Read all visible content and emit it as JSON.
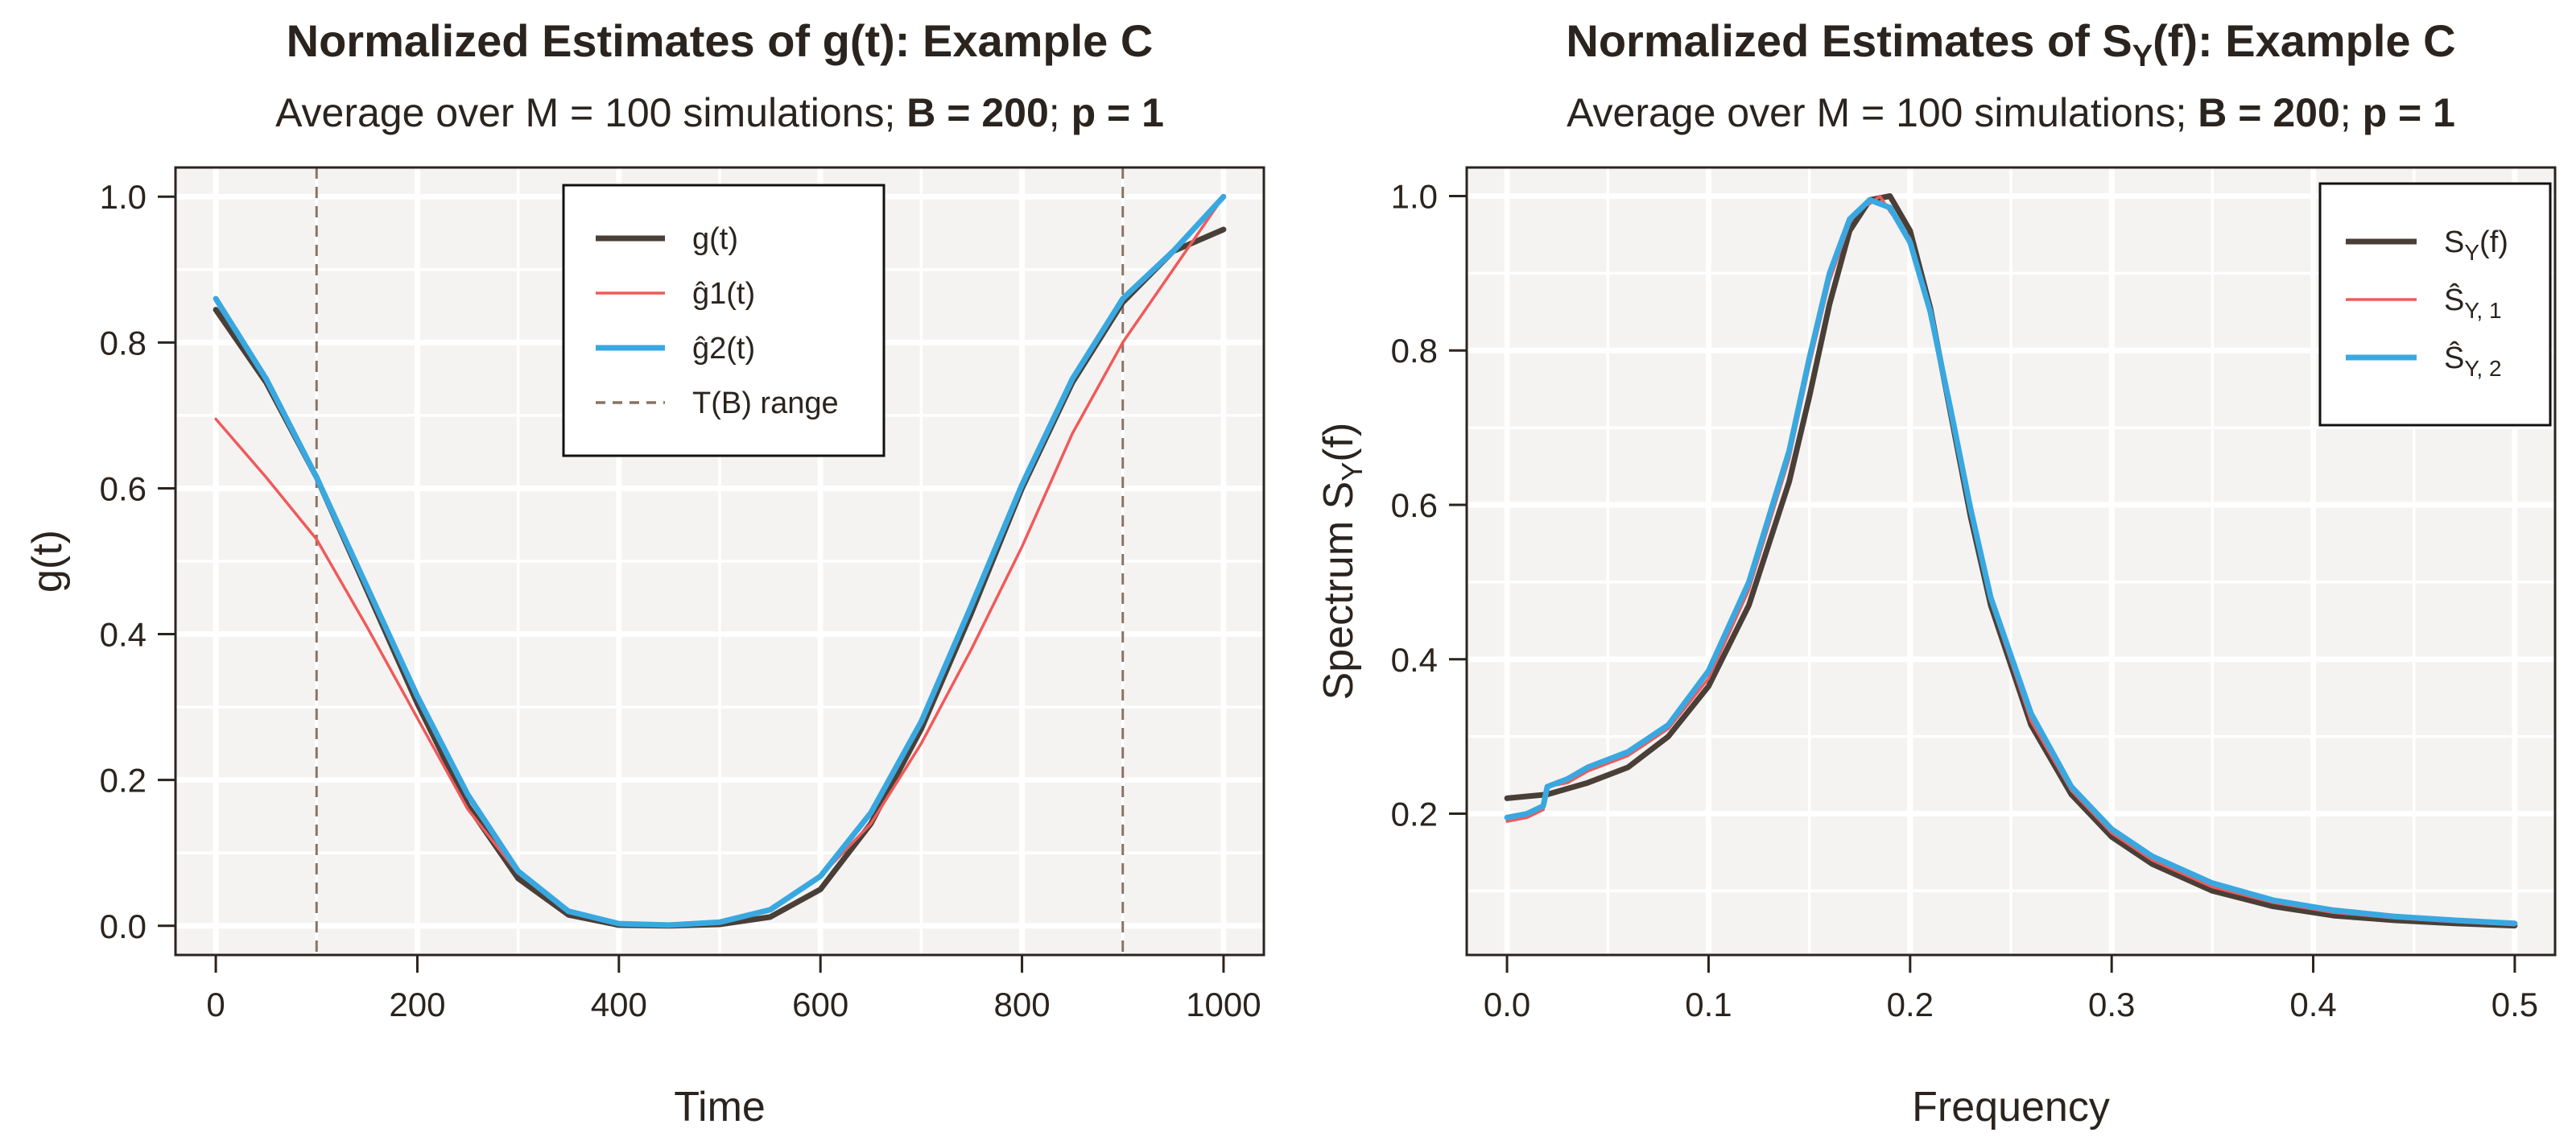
{
  "chart_data": [
    {
      "type": "line",
      "title": "Normalized Estimates of g(t): Example C",
      "subtitle": {
        "prefix": "Average over M = 100 simulations; ",
        "b_part": "B = 200",
        "sep": "; ",
        "p_part": "p = 1"
      },
      "xlabel": "Time",
      "ylabel": "g(t)",
      "xlim": [
        -40,
        1040
      ],
      "ylim": [
        -0.04,
        1.04
      ],
      "xticks": [
        0,
        200,
        400,
        600,
        800,
        1000
      ],
      "xtick_labels": [
        "0",
        "200",
        "400",
        "600",
        "800",
        "1000"
      ],
      "yticks": [
        0.0,
        0.2,
        0.4,
        0.6,
        0.8,
        1.0
      ],
      "ytick_labels": [
        "0.0",
        "0.2",
        "0.4",
        "0.6",
        "0.8",
        "1.0"
      ],
      "grid": true,
      "legend_position": "top-center",
      "vlines": [
        100,
        900
      ],
      "series": [
        {
          "name": "g(t)",
          "color": "#4a3f37",
          "style": "solid-thick",
          "x": [
            0,
            50,
            100,
            150,
            200,
            250,
            300,
            350,
            400,
            450,
            500,
            550,
            600,
            650,
            700,
            750,
            800,
            850,
            900,
            950,
            1000
          ],
          "y": [
            0.845,
            0.745,
            0.615,
            0.46,
            0.305,
            0.165,
            0.065,
            0.015,
            0.001,
            0.0,
            0.002,
            0.012,
            0.05,
            0.14,
            0.27,
            0.43,
            0.6,
            0.745,
            0.855,
            0.925,
            0.955
          ]
        },
        {
          "name": "ĝ1(t)",
          "color": "#f05a5a",
          "style": "solid-thin",
          "x": [
            0,
            50,
            100,
            150,
            200,
            250,
            300,
            350,
            400,
            450,
            500,
            550,
            600,
            650,
            700,
            750,
            800,
            850,
            900,
            950,
            1000
          ],
          "y": [
            0.695,
            0.615,
            0.53,
            0.41,
            0.285,
            0.16,
            0.072,
            0.02,
            0.003,
            0.0,
            0.003,
            0.022,
            0.068,
            0.14,
            0.25,
            0.38,
            0.52,
            0.675,
            0.8,
            0.9,
            1.0
          ]
        },
        {
          "name": "ĝ2(t)",
          "color": "#3aa8e0",
          "style": "solid-thick",
          "x": [
            0,
            50,
            100,
            150,
            200,
            250,
            300,
            350,
            400,
            450,
            500,
            550,
            600,
            650,
            700,
            750,
            800,
            850,
            900,
            950,
            1000
          ],
          "y": [
            0.86,
            0.75,
            0.615,
            0.465,
            0.315,
            0.18,
            0.075,
            0.02,
            0.003,
            0.001,
            0.005,
            0.022,
            0.068,
            0.155,
            0.28,
            0.44,
            0.605,
            0.75,
            0.86,
            0.925,
            1.0
          ]
        }
      ],
      "legend": [
        {
          "label": "g(t)",
          "kind": "line",
          "color": "#4a3f37",
          "width": "thick"
        },
        {
          "label": "ĝ1(t)",
          "kind": "line",
          "color": "#f05a5a",
          "width": "thin"
        },
        {
          "label": "ĝ2(t)",
          "kind": "line",
          "color": "#3aa8e0",
          "width": "thick"
        },
        {
          "label": "T(B) range",
          "kind": "dashed",
          "color": "#8a7364",
          "width": "thin"
        }
      ]
    },
    {
      "type": "line",
      "title": "Normalized Estimates of SY(f): Example C",
      "title_parts": {
        "before": "Normalized Estimates of S",
        "sub": "Y",
        "after": "(f): Example C"
      },
      "subtitle": {
        "prefix": "Average over M = 100 simulations; ",
        "b_part": "B = 200",
        "sep": "; ",
        "p_part": "p = 1"
      },
      "xlabel": "Frequency",
      "ylabel": "Spectrum SY(f)",
      "ylabel_parts": {
        "before": "Spectrum S",
        "sub": "Y",
        "after": "(f)"
      },
      "xlim": [
        -0.02,
        0.52
      ],
      "ylim": [
        0.017,
        1.037
      ],
      "xticks": [
        0.0,
        0.1,
        0.2,
        0.3,
        0.4,
        0.5
      ],
      "xtick_labels": [
        "0.0",
        "0.1",
        "0.2",
        "0.3",
        "0.4",
        "0.5"
      ],
      "yticks": [
        0.2,
        0.4,
        0.6,
        0.8,
        1.0
      ],
      "ytick_labels": [
        "0.2",
        "0.4",
        "0.6",
        "0.8",
        "1.0"
      ],
      "grid": true,
      "legend_position": "top-right",
      "series": [
        {
          "name": "SY(f)",
          "color": "#4a3f37",
          "style": "solid-thick",
          "x": [
            0.0,
            0.02,
            0.04,
            0.06,
            0.08,
            0.1,
            0.12,
            0.14,
            0.15,
            0.16,
            0.17,
            0.18,
            0.19,
            0.2,
            0.21,
            0.22,
            0.23,
            0.24,
            0.26,
            0.28,
            0.3,
            0.32,
            0.35,
            0.38,
            0.41,
            0.44,
            0.47,
            0.5
          ],
          "y": [
            0.22,
            0.225,
            0.24,
            0.26,
            0.3,
            0.365,
            0.47,
            0.63,
            0.74,
            0.86,
            0.955,
            0.995,
            1.0,
            0.955,
            0.855,
            0.72,
            0.585,
            0.47,
            0.315,
            0.225,
            0.17,
            0.135,
            0.1,
            0.08,
            0.068,
            0.062,
            0.058,
            0.055
          ]
        },
        {
          "name": "ŜY,1",
          "color": "#f05a5a",
          "style": "solid-thin",
          "x": [
            0.0,
            0.01,
            0.018,
            0.02,
            0.03,
            0.04,
            0.06,
            0.08,
            0.1,
            0.12,
            0.14,
            0.15,
            0.16,
            0.17,
            0.175,
            0.18,
            0.185,
            0.19,
            0.2,
            0.21,
            0.22,
            0.23,
            0.24,
            0.26,
            0.28,
            0.3,
            0.32,
            0.35,
            0.38,
            0.41,
            0.44,
            0.47,
            0.5
          ],
          "y": [
            0.19,
            0.195,
            0.205,
            0.235,
            0.24,
            0.255,
            0.275,
            0.31,
            0.375,
            0.49,
            0.66,
            0.78,
            0.89,
            0.965,
            0.985,
            0.99,
            1.0,
            0.98,
            0.945,
            0.845,
            0.72,
            0.59,
            0.475,
            0.32,
            0.23,
            0.175,
            0.14,
            0.105,
            0.085,
            0.072,
            0.065,
            0.06,
            0.056
          ]
        },
        {
          "name": "ŜY,2",
          "color": "#3aa8e0",
          "style": "solid-thick",
          "x": [
            0.0,
            0.01,
            0.018,
            0.02,
            0.03,
            0.04,
            0.06,
            0.08,
            0.1,
            0.12,
            0.14,
            0.15,
            0.16,
            0.17,
            0.18,
            0.19,
            0.2,
            0.21,
            0.22,
            0.23,
            0.24,
            0.26,
            0.28,
            0.3,
            0.32,
            0.35,
            0.38,
            0.41,
            0.44,
            0.47,
            0.5
          ],
          "y": [
            0.195,
            0.2,
            0.21,
            0.235,
            0.245,
            0.26,
            0.28,
            0.315,
            0.385,
            0.5,
            0.67,
            0.79,
            0.9,
            0.97,
            0.995,
            0.985,
            0.94,
            0.85,
            0.725,
            0.595,
            0.48,
            0.33,
            0.235,
            0.18,
            0.145,
            0.11,
            0.088,
            0.075,
            0.067,
            0.062,
            0.058
          ]
        }
      ],
      "legend": [
        {
          "label": "SY(f)",
          "label_parts": {
            "before": "S",
            "sub": "Y",
            "after": "(f)"
          },
          "kind": "line",
          "color": "#4a3f37",
          "width": "thick"
        },
        {
          "label": "ŜY,1",
          "label_parts": {
            "before": "Ŝ",
            "sub": "Y, 1",
            "after": ""
          },
          "kind": "line",
          "color": "#f05a5a",
          "width": "thin"
        },
        {
          "label": "ŜY,2",
          "label_parts": {
            "before": "Ŝ",
            "sub": "Y, 2",
            "after": ""
          },
          "kind": "line",
          "color": "#3aa8e0",
          "width": "thick"
        }
      ]
    }
  ]
}
